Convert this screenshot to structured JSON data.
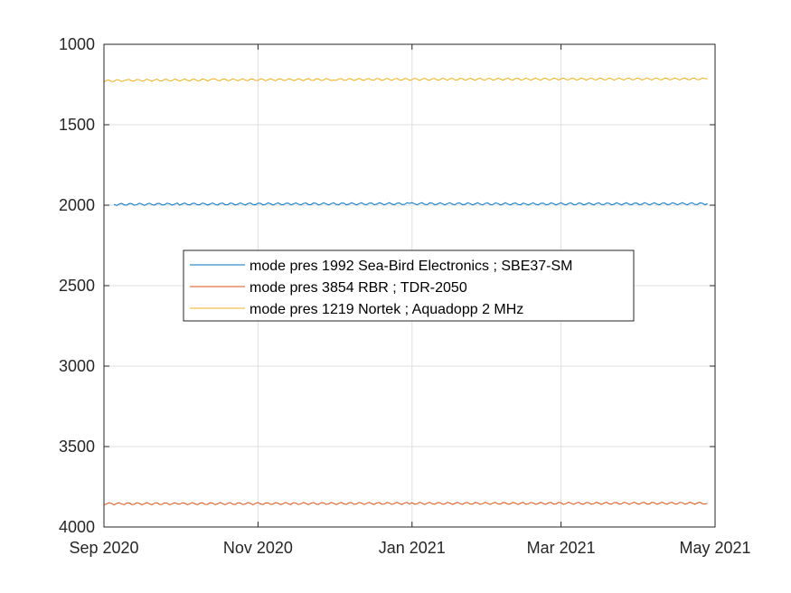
{
  "chart_data": {
    "type": "line",
    "title": "",
    "xlabel": "",
    "ylabel": "",
    "y_reversed": true,
    "ylim": [
      1000,
      4000
    ],
    "xlim": [
      "2020-09-01",
      "2021-05-01"
    ],
    "grid": true,
    "legend_position": "center",
    "x_ticks": [
      {
        "date": "2020-09-01",
        "label": "Sep 2020"
      },
      {
        "date": "2020-11-01",
        "label": "Nov 2020"
      },
      {
        "date": "2021-01-01",
        "label": "Jan 2021"
      },
      {
        "date": "2021-03-01",
        "label": "Mar 2021"
      },
      {
        "date": "2021-05-01",
        "label": "May 2021"
      }
    ],
    "y_ticks": [
      {
        "value": 1000,
        "label": "1000"
      },
      {
        "value": 1500,
        "label": "1500"
      },
      {
        "value": 2000,
        "label": "2000"
      },
      {
        "value": 2500,
        "label": "2500"
      },
      {
        "value": 3000,
        "label": "3000"
      },
      {
        "value": 3500,
        "label": "3500"
      },
      {
        "value": 4000,
        "label": "4000"
      }
    ],
    "series": [
      {
        "name": "mode pres 1992 Sea-Bird Electronics ; SBE37-SM",
        "color": "#0072BD",
        "x": [
          "2020-09-05",
          "2020-10-01",
          "2020-11-15",
          "2021-01-01",
          "2021-02-15",
          "2021-04-28"
        ],
        "values": [
          1995,
          1993,
          1992,
          1991,
          1992,
          1991
        ]
      },
      {
        "name": "mode pres 3854 RBR ; TDR-2050",
        "color": "#D95319",
        "x": [
          "2020-09-01",
          "2020-10-01",
          "2020-11-15",
          "2021-01-01",
          "2021-02-15",
          "2021-04-28"
        ],
        "values": [
          3855,
          3855,
          3854,
          3853,
          3853,
          3852
        ]
      },
      {
        "name": "mode pres 1219 Nortek ; Aquadopp 2 MHz",
        "color": "#EDB120",
        "x": [
          "2020-09-01",
          "2020-09-10",
          "2020-10-15",
          "2020-12-01",
          "2021-01-15",
          "2021-03-01",
          "2021-04-28"
        ],
        "values": [
          1228,
          1224,
          1221,
          1219,
          1217,
          1216,
          1215
        ]
      }
    ]
  }
}
